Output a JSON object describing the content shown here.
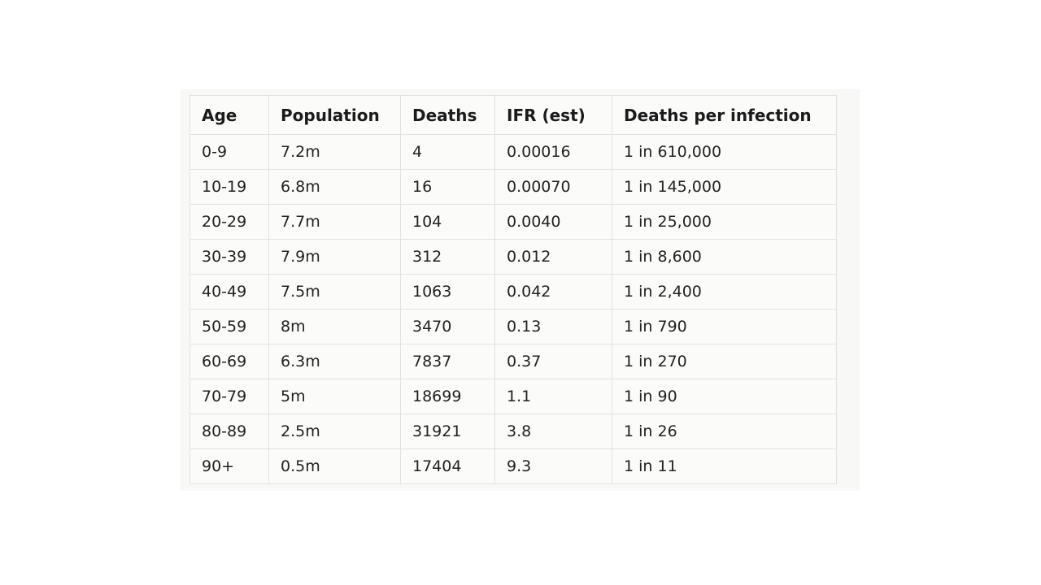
{
  "panel": {
    "background": "#f8f8f7"
  },
  "colors": {
    "page_bg": "#ffffff",
    "cell_bg": "#fbfbfa",
    "border": "#e2e2e0",
    "text": "#222222"
  },
  "table": {
    "headers": [
      "Age",
      "Population",
      "Deaths",
      "IFR (est)",
      "Deaths per infection"
    ],
    "rows": [
      [
        "0-9",
        "7.2m",
        "4",
        "0.00016",
        "1 in 610,000"
      ],
      [
        "10-19",
        "6.8m",
        "16",
        "0.00070",
        "1 in 145,000"
      ],
      [
        "20-29",
        "7.7m",
        "104",
        "0.0040",
        "1 in 25,000"
      ],
      [
        "30-39",
        "7.9m",
        "312",
        "0.012",
        "1 in 8,600"
      ],
      [
        "40-49",
        "7.5m",
        "1063",
        "0.042",
        "1 in 2,400"
      ],
      [
        "50-59",
        "8m",
        "3470",
        "0.13",
        "1 in 790"
      ],
      [
        "60-69",
        "6.3m",
        "7837",
        "0.37",
        "1 in 270"
      ],
      [
        "70-79",
        "5m",
        "18699",
        "1.1",
        "1 in 90"
      ],
      [
        "80-89",
        "2.5m",
        "31921",
        "3.8",
        "1 in 26"
      ],
      [
        "90+",
        "0.5m",
        "17404",
        "9.3",
        "1 in 11"
      ]
    ]
  }
}
